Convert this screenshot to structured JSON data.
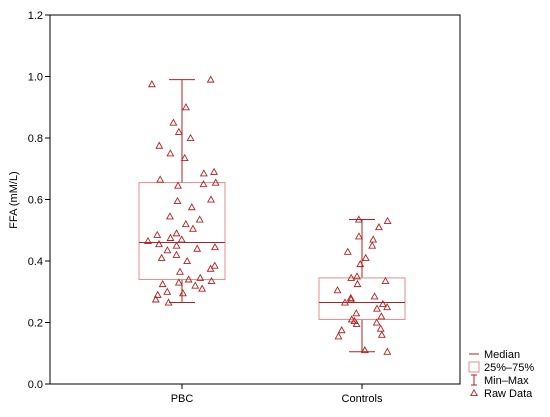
{
  "chart_data": {
    "type": "box",
    "title": "",
    "xlabel": "",
    "ylabel": "FFA (mM/L)",
    "ylim": [
      0,
      1.2
    ],
    "yticks": [
      "0.0",
      "0.2",
      "0.4",
      "0.6",
      "0.8",
      "1.0",
      "1.2"
    ],
    "grid": false,
    "legend_position": "bottom-right",
    "categories": [
      "PBC",
      "Controls"
    ],
    "boxes": [
      {
        "category": "PBC",
        "median": 0.46,
        "q1": 0.34,
        "q3": 0.655,
        "min": 0.265,
        "max": 0.99
      },
      {
        "category": "Controls",
        "median": 0.265,
        "q1": 0.21,
        "q3": 0.345,
        "min": 0.105,
        "max": 0.535
      }
    ],
    "raw_data": [
      {
        "category": "PBC",
        "values": [
          0.99,
          0.975,
          0.9,
          0.85,
          0.82,
          0.8,
          0.775,
          0.75,
          0.735,
          0.69,
          0.685,
          0.665,
          0.655,
          0.65,
          0.645,
          0.6,
          0.595,
          0.575,
          0.545,
          0.535,
          0.52,
          0.505,
          0.49,
          0.485,
          0.475,
          0.47,
          0.465,
          0.455,
          0.45,
          0.445,
          0.44,
          0.435,
          0.42,
          0.41,
          0.4,
          0.385,
          0.375,
          0.365,
          0.345,
          0.34,
          0.335,
          0.33,
          0.325,
          0.32,
          0.31,
          0.3,
          0.295,
          0.29,
          0.275,
          0.265
        ]
      },
      {
        "category": "Controls",
        "values": [
          0.535,
          0.53,
          0.51,
          0.48,
          0.47,
          0.45,
          0.43,
          0.41,
          0.39,
          0.35,
          0.345,
          0.335,
          0.325,
          0.305,
          0.285,
          0.28,
          0.275,
          0.265,
          0.26,
          0.25,
          0.245,
          0.23,
          0.22,
          0.21,
          0.205,
          0.2,
          0.195,
          0.18,
          0.175,
          0.16,
          0.155,
          0.11,
          0.105
        ]
      }
    ],
    "legend": [
      {
        "symbol": "line",
        "label": "Median"
      },
      {
        "symbol": "box",
        "label": "25%–75%"
      },
      {
        "symbol": "whisker",
        "label": "Min–Max"
      },
      {
        "symbol": "triangle",
        "label": "Raw Data"
      }
    ],
    "colors": {
      "series": "#b22222",
      "box_edge": "#e08c8c",
      "axis": "#000000"
    }
  }
}
